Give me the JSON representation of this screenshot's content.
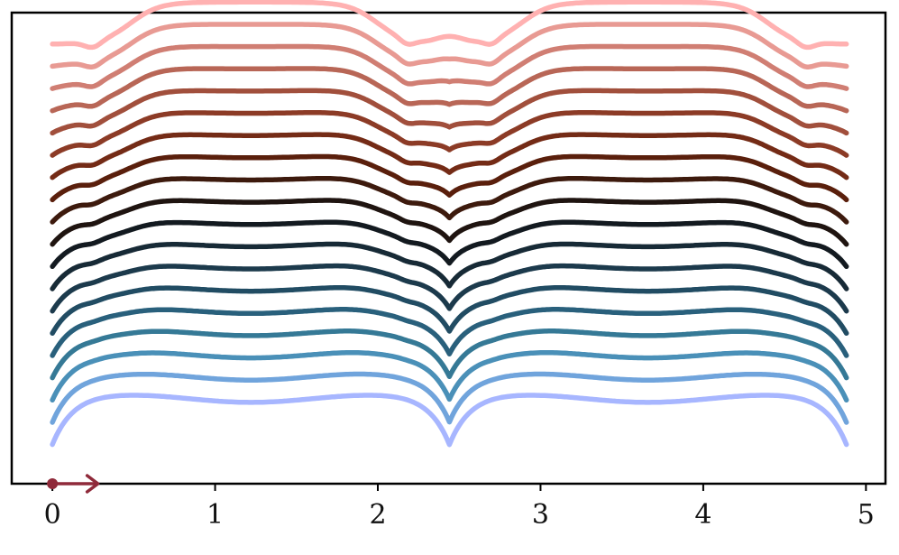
{
  "chart_data": {
    "type": "line",
    "title": "",
    "xlabel": "",
    "ylabel": "",
    "xlim": [
      -0.25,
      5.12
    ],
    "xticks": [
      0,
      1,
      2,
      3,
      4,
      5
    ],
    "xtick_labels": [
      "0",
      "1",
      "2",
      "3",
      "4",
      "5"
    ],
    "yticks": [],
    "grid": false,
    "legend": "none",
    "x_range": [
      0,
      4.88
    ],
    "feature_x": {
      "left_dip": 0.25,
      "flat_start": 0.75,
      "mid_corner_left": 1.22,
      "left_drop": 2.2,
      "center": 2.44,
      "right_rise": 2.68,
      "mid_corner_right": 3.66,
      "right_drop": 4.13,
      "right_dip": 4.63
    },
    "color_top": "#ffb2b2",
    "color_mid": "#100c0c",
    "color_bottom": "#a8b8ff",
    "series_count": 19,
    "series": [
      {
        "color": "#ffb1b1",
        "offset": 0.0,
        "base": 9.7,
        "amp": 1.0,
        "scale": 1.0
      },
      {
        "color": "#e89a93",
        "offset": 0.65,
        "base": 9.3,
        "amp": 0.9,
        "scale": 1.0
      },
      {
        "color": "#d07e73",
        "offset": 1.3,
        "base": 8.9,
        "amp": 0.8,
        "scale": 1.0
      },
      {
        "color": "#b86656",
        "offset": 1.95,
        "base": 8.5,
        "amp": 0.7,
        "scale": 1.0
      },
      {
        "color": "#a14f3c",
        "offset": 2.6,
        "base": 8.1,
        "amp": 0.6,
        "scale": 1.0
      },
      {
        "color": "#8c3b26",
        "offset": 3.25,
        "base": 7.7,
        "amp": 0.5,
        "scale": 1.0
      },
      {
        "color": "#742b16",
        "offset": 3.9,
        "base": 7.3,
        "amp": 0.4,
        "scale": 1.0
      },
      {
        "color": "#5a1f0c",
        "offset": 4.55,
        "base": 6.9,
        "amp": 0.3,
        "scale": 1.0
      },
      {
        "color": "#3d1a0d",
        "offset": 5.2,
        "base": 6.5,
        "amp": 0.2,
        "scale": 1.0
      },
      {
        "color": "#1f1410",
        "offset": 5.85,
        "base": 6.1,
        "amp": 0.1,
        "scale": 1.0
      },
      {
        "color": "#131a20",
        "offset": 6.5,
        "base": 5.7,
        "amp": 0.0,
        "scale": 1.0
      },
      {
        "color": "#172a36",
        "offset": 7.15,
        "base": 5.3,
        "amp": -0.1,
        "scale": 1.0
      },
      {
        "color": "#1c3a4c",
        "offset": 7.8,
        "base": 4.9,
        "amp": -0.2,
        "scale": 1.0
      },
      {
        "color": "#214c63",
        "offset": 8.45,
        "base": 4.5,
        "amp": -0.3,
        "scale": 1.0
      },
      {
        "color": "#29607c",
        "offset": 9.1,
        "base": 4.1,
        "amp": -0.4,
        "scale": 1.0
      },
      {
        "color": "#357996",
        "offset": 9.75,
        "base": 3.7,
        "amp": -0.5,
        "scale": 1.0
      },
      {
        "color": "#4a90b8",
        "offset": 10.4,
        "base": 3.3,
        "amp": -0.6,
        "scale": 1.0
      },
      {
        "color": "#70a4dc",
        "offset": 11.05,
        "base": 2.9,
        "amp": -0.7,
        "scale": 1.0
      },
      {
        "color": "#a7b6ff",
        "offset": 11.7,
        "base": 2.5,
        "amp": -0.8,
        "scale": 1.0
      }
    ],
    "marker": {
      "x": 0,
      "arrow_to_x": 0.28,
      "color": "#8f2a3a"
    }
  }
}
